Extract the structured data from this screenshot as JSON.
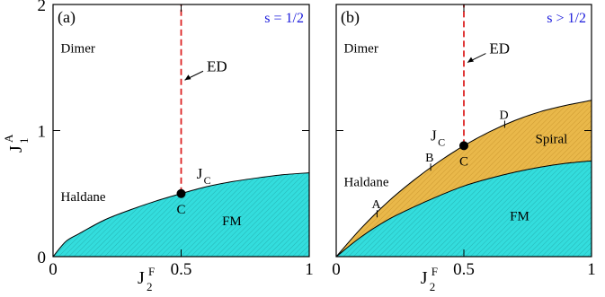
{
  "chart_data": [
    {
      "type": "area",
      "panel_label": "(a)",
      "corner_label": "s = 1/2",
      "corner_label_color": "#1a1adb",
      "xlabel_main": "J",
      "xlabel_sub": "2",
      "xlabel_sup": "F",
      "ylabel_main": "J",
      "ylabel_sub": "1",
      "ylabel_sup": "A",
      "xlim": [
        0,
        1
      ],
      "ylim": [
        0,
        2
      ],
      "xticks": [
        0,
        0.5,
        1
      ],
      "xtick_labels": [
        "0",
        "0.5",
        "1"
      ],
      "yticks": [
        0,
        1,
        2
      ],
      "ytick_labels": [
        "0",
        "1",
        "2"
      ],
      "fill_color": "#33dddd",
      "lower_boundary": {
        "name": "J_C",
        "x": [
          0,
          0.05,
          0.1,
          0.2,
          0.3,
          0.4,
          0.5,
          0.6,
          0.7,
          0.8,
          0.9,
          1.0
        ],
        "y": [
          0,
          0.12,
          0.18,
          0.29,
          0.37,
          0.44,
          0.5,
          0.555,
          0.595,
          0.625,
          0.65,
          0.665
        ]
      },
      "vertical_line": {
        "x": 0.5,
        "from_y": 0.5,
        "to_y": 2,
        "color": "#dd2222",
        "label": "ED",
        "label_x": 0.6,
        "label_y": 1.5
      },
      "critical_point": {
        "x": 0.5,
        "y": 0.5,
        "label": "C"
      },
      "region_labels": [
        {
          "text": "Dimer",
          "x": 0.03,
          "y": 1.62
        },
        {
          "text": "Haldane",
          "x": 0.03,
          "y": 0.44
        },
        {
          "text": "FM",
          "x": 0.66,
          "y": 0.25
        }
      ],
      "curve_label": {
        "text": "J",
        "sub": "C",
        "x": 0.56,
        "y": 0.62
      }
    },
    {
      "type": "area",
      "panel_label": "(b)",
      "corner_label": "s > 1/2",
      "corner_label_color": "#1a1adb",
      "xlabel_main": "J",
      "xlabel_sub": "2",
      "xlabel_sup": "F",
      "ylabel_main": "",
      "xlim": [
        0,
        1
      ],
      "ylim": [
        0,
        2
      ],
      "xticks": [
        0,
        0.5,
        1
      ],
      "xtick_labels": [
        "0",
        "0.5",
        "1"
      ],
      "yticks": [
        0,
        1,
        2
      ],
      "ytick_labels": [],
      "fill_color": "#33dddd",
      "spiral_color": "#e9b84a",
      "upper_boundary": {
        "name": "J_C",
        "x": [
          0,
          0.1,
          0.2,
          0.3,
          0.4,
          0.5,
          0.6,
          0.7,
          0.8,
          0.9,
          1.0
        ],
        "y": [
          0,
          0.23,
          0.43,
          0.6,
          0.75,
          0.88,
          0.99,
          1.08,
          1.15,
          1.2,
          1.24
        ]
      },
      "lower_boundary": {
        "name": "FM",
        "x": [
          0,
          0.1,
          0.2,
          0.3,
          0.4,
          0.5,
          0.6,
          0.7,
          0.8,
          0.9,
          1.0
        ],
        "y": [
          0,
          0.16,
          0.29,
          0.39,
          0.48,
          0.56,
          0.62,
          0.67,
          0.71,
          0.74,
          0.76
        ]
      },
      "vertical_line": {
        "x": 0.5,
        "from_y": 0.88,
        "to_y": 2,
        "color": "#dd2222",
        "label": "ED",
        "label_x": 0.6,
        "label_y": 1.64
      },
      "critical_point": {
        "x": 0.5,
        "y": 0.88,
        "label": "C"
      },
      "marked_points": [
        {
          "label": "A",
          "x": 0.16,
          "y": 0.34
        },
        {
          "label": "B",
          "x": 0.37,
          "y": 0.71
        },
        {
          "label": "D",
          "x": 0.66,
          "y": 1.05
        }
      ],
      "region_labels": [
        {
          "text": "Dimer",
          "x": 0.03,
          "y": 1.62
        },
        {
          "text": "Haldane",
          "x": 0.03,
          "y": 0.56
        },
        {
          "text": "Spiral",
          "x": 0.78,
          "y": 0.9
        },
        {
          "text": "FM",
          "x": 0.68,
          "y": 0.29
        }
      ],
      "curve_label": {
        "text": "J",
        "sub": "C",
        "x": 0.37,
        "y": 0.92
      }
    }
  ]
}
